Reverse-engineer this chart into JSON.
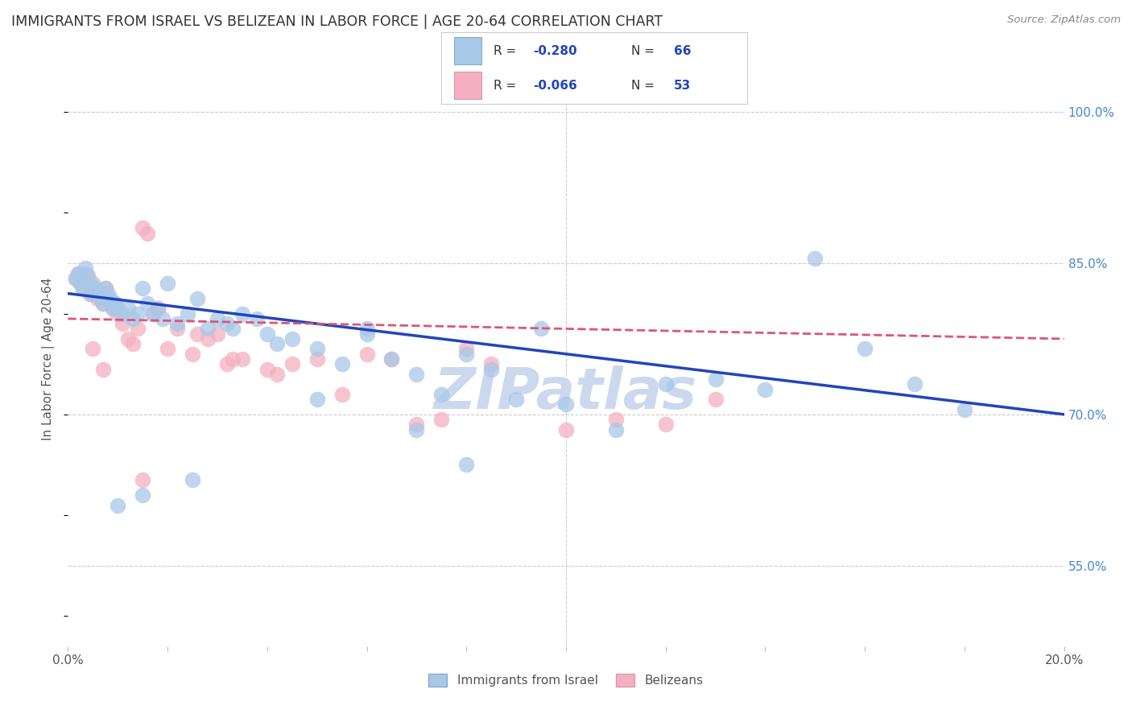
{
  "title": "IMMIGRANTS FROM ISRAEL VS BELIZEAN IN LABOR FORCE | AGE 20-64 CORRELATION CHART",
  "source": "Source: ZipAtlas.com",
  "ylabel": "In Labor Force | Age 20-64",
  "legend_label_blue": "Immigrants from Israel",
  "legend_label_pink": "Belizeans",
  "blue_fill": "#a8c8e8",
  "pink_fill": "#f4b0c0",
  "trend_blue": "#2244bb",
  "trend_pink": "#dd5577",
  "bg_color": "#ffffff",
  "grid_color": "#cccccc",
  "title_color": "#333333",
  "right_tick_color": "#4488cc",
  "watermark_color": "#ccd8ee",
  "legend_text_dark": "#333333",
  "legend_text_blue": "#2244bb",
  "xmin": 0.0,
  "xmax": 20.0,
  "ymin": 47.0,
  "ymax": 104.0,
  "yticks": [
    55.0,
    70.0,
    85.0,
    100.0
  ],
  "blue_trend_y0": 82.0,
  "blue_trend_y1": 70.0,
  "pink_trend_y0": 79.5,
  "pink_trend_y1": 77.5,
  "blue_x": [
    0.15,
    0.2,
    0.25,
    0.3,
    0.35,
    0.4,
    0.45,
    0.5,
    0.55,
    0.6,
    0.65,
    0.7,
    0.75,
    0.8,
    0.85,
    0.9,
    0.95,
    1.0,
    1.1,
    1.2,
    1.3,
    1.4,
    1.5,
    1.6,
    1.7,
    1.8,
    1.9,
    2.0,
    2.2,
    2.4,
    2.6,
    2.8,
    3.0,
    3.2,
    3.5,
    3.8,
    4.0,
    4.5,
    5.0,
    5.5,
    6.0,
    6.5,
    7.0,
    7.5,
    8.0,
    8.5,
    9.0,
    9.5,
    10.0,
    11.0,
    12.0,
    13.0,
    14.0,
    15.0,
    16.0,
    17.0,
    18.0,
    8.0,
    7.0,
    6.0,
    5.0,
    4.2,
    3.3,
    2.5,
    1.5,
    1.0
  ],
  "blue_y": [
    83.5,
    84.0,
    83.0,
    82.5,
    84.5,
    83.8,
    82.0,
    83.0,
    82.5,
    82.0,
    81.5,
    81.0,
    82.5,
    82.0,
    81.5,
    80.5,
    81.0,
    80.5,
    80.0,
    80.5,
    79.5,
    80.0,
    82.5,
    81.0,
    80.0,
    80.5,
    79.5,
    83.0,
    79.0,
    80.0,
    81.5,
    78.5,
    79.5,
    79.0,
    80.0,
    79.5,
    78.0,
    77.5,
    76.5,
    75.0,
    78.5,
    75.5,
    74.0,
    72.0,
    76.0,
    74.5,
    71.5,
    78.5,
    71.0,
    68.5,
    73.0,
    73.5,
    72.5,
    85.5,
    76.5,
    73.0,
    70.5,
    65.0,
    68.5,
    78.0,
    71.5,
    77.0,
    78.5,
    63.5,
    62.0,
    61.0
  ],
  "pink_x": [
    0.15,
    0.2,
    0.25,
    0.3,
    0.35,
    0.4,
    0.45,
    0.5,
    0.55,
    0.6,
    0.65,
    0.7,
    0.75,
    0.8,
    0.85,
    0.9,
    0.95,
    1.0,
    1.1,
    1.2,
    1.3,
    1.4,
    1.5,
    1.6,
    1.7,
    1.8,
    2.0,
    2.2,
    2.5,
    2.8,
    3.0,
    3.2,
    3.5,
    4.0,
    4.5,
    5.0,
    5.5,
    6.0,
    6.5,
    7.0,
    7.5,
    8.0,
    8.5,
    10.0,
    11.0,
    12.0,
    13.0,
    4.2,
    3.3,
    2.6,
    1.5,
    0.7,
    0.5
  ],
  "pink_y": [
    83.5,
    84.0,
    83.0,
    82.5,
    84.0,
    83.5,
    82.0,
    82.5,
    82.0,
    81.5,
    82.0,
    81.0,
    82.5,
    81.5,
    81.0,
    80.5,
    81.0,
    80.0,
    79.0,
    77.5,
    77.0,
    78.5,
    88.5,
    88.0,
    80.0,
    80.5,
    76.5,
    78.5,
    76.0,
    77.5,
    78.0,
    75.0,
    75.5,
    74.5,
    75.0,
    75.5,
    72.0,
    76.0,
    75.5,
    69.0,
    69.5,
    76.5,
    75.0,
    68.5,
    69.5,
    69.0,
    71.5,
    74.0,
    75.5,
    78.0,
    63.5,
    74.5,
    76.5
  ]
}
